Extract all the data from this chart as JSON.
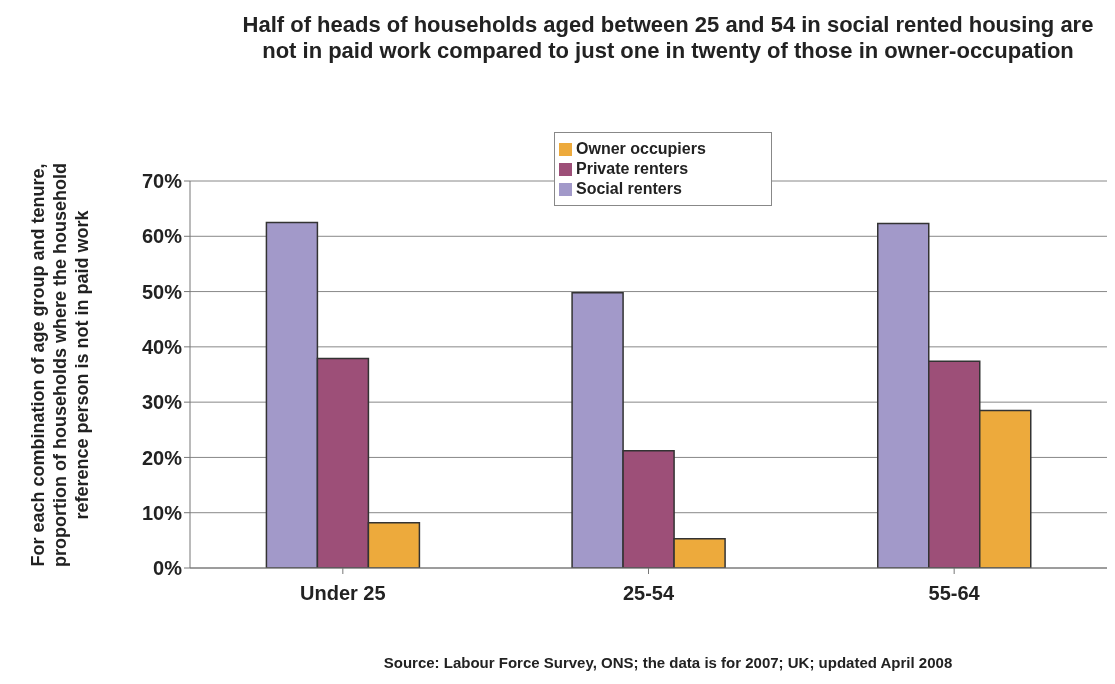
{
  "chart_data": {
    "type": "bar",
    "title": "Half of heads of households aged between 25 and 54 in social rented housing are not in paid work compared to just one in twenty of those in owner-occupation",
    "ylabel": "For each combination of age group and tenure, proportion of households where the household reference person is not in paid work",
    "annotations": [
      "Source: Labour Force Survey, ONS; the data is for 2007; UK; updated April 2008"
    ],
    "categories": [
      "Under 25",
      "25-54",
      "55-64"
    ],
    "series": [
      {
        "name": "Social renters",
        "color": "#a299c9",
        "values": [
          62.5,
          49.8,
          62.3
        ]
      },
      {
        "name": "Private renters",
        "color": "#9d4f78",
        "values": [
          37.9,
          21.2,
          37.4
        ]
      },
      {
        "name": "Owner occupiers",
        "color": "#edaa3c",
        "values": [
          8.2,
          5.3,
          28.5
        ]
      }
    ],
    "ylim": [
      0,
      70
    ],
    "yticks": [
      {
        "value": 0,
        "label": "0%"
      },
      {
        "value": 10,
        "label": "10%"
      },
      {
        "value": 20,
        "label": "20%"
      },
      {
        "value": 30,
        "label": "30%"
      },
      {
        "value": 40,
        "label": "40%"
      },
      {
        "value": 50,
        "label": "50%"
      },
      {
        "value": 60,
        "label": "60%"
      },
      {
        "value": 70,
        "label": "70%"
      }
    ],
    "grid": "y",
    "legend": "top"
  }
}
